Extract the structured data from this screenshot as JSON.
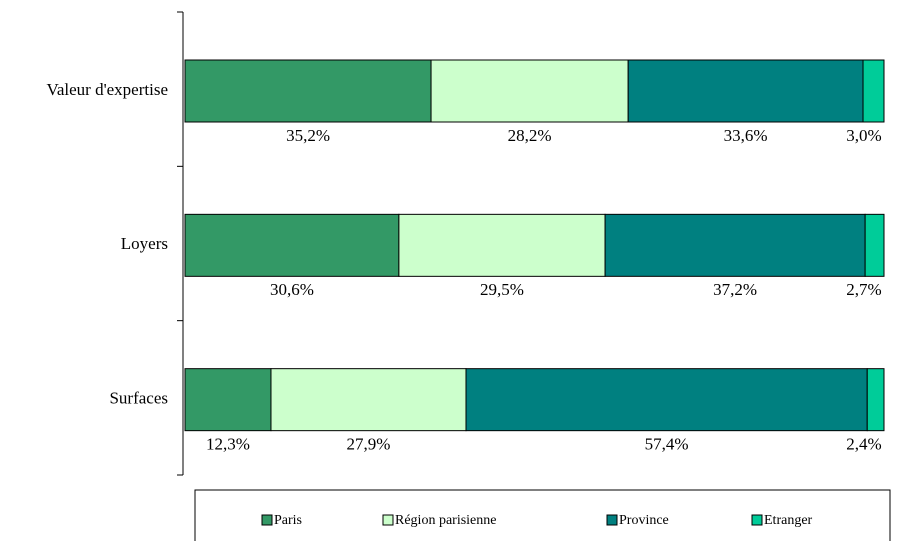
{
  "chart_data": {
    "type": "stacked_barh",
    "categories": [
      "Valeur d'expertise",
      "Loyers",
      "Surfaces"
    ],
    "series": [
      {
        "name": "Paris",
        "color": "#339966",
        "values": [
          35.2,
          30.6,
          12.3
        ],
        "value_labels": [
          "35,2%",
          "30,6%",
          "12,3%"
        ]
      },
      {
        "name": "Région parisienne",
        "color": "#ccffcc",
        "values": [
          28.2,
          29.5,
          27.9
        ],
        "value_labels": [
          "28,2%",
          "29,5%",
          "27,9%"
        ]
      },
      {
        "name": "Province",
        "color": "#008080",
        "values": [
          33.6,
          37.2,
          57.4
        ],
        "value_labels": [
          "33,6%",
          "37,2%",
          "57,4%"
        ]
      },
      {
        "name": "Etranger",
        "color": "#00cc99",
        "values": [
          3.0,
          2.7,
          2.4
        ],
        "value_labels": [
          "3,0%",
          "2,7%",
          "2,4%"
        ]
      }
    ],
    "xlim": [
      0,
      100
    ],
    "legend": "bottom"
  }
}
